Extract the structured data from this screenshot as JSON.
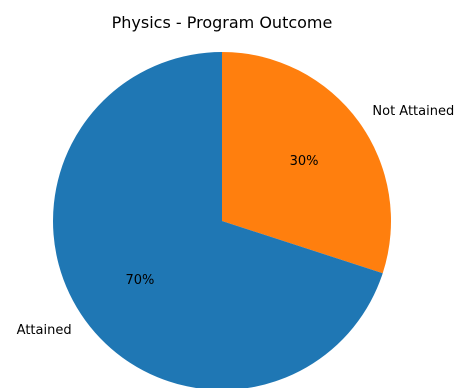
{
  "chart_data": {
    "type": "pie",
    "title": "Physics - Program Outcome",
    "labels": [
      "Not Attained",
      "Attained"
    ],
    "values": [
      30,
      70
    ],
    "percent_labels": [
      "30%",
      "70%"
    ],
    "colors": [
      "#ff7f0e",
      "#1f77b4"
    ],
    "start_angle_deg": 90,
    "direction": "clockwise",
    "legend": "none"
  }
}
